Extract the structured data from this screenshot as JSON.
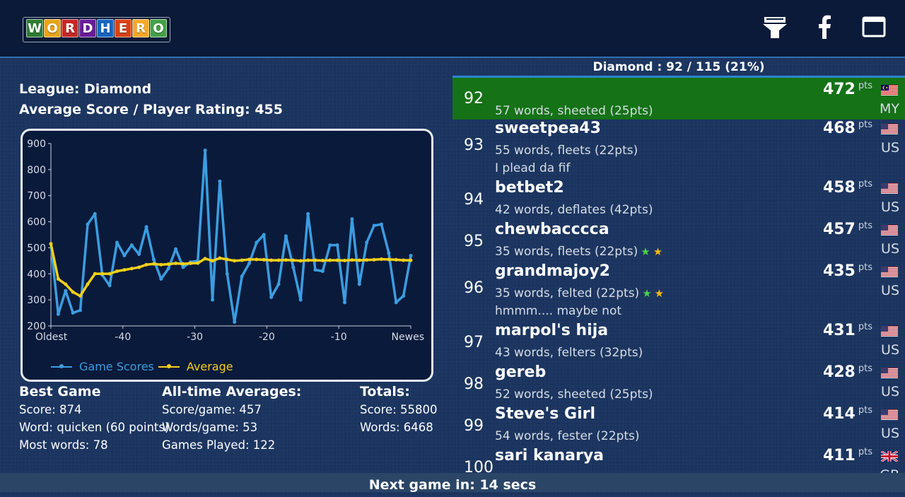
{
  "app": {
    "logo_letters": [
      "W",
      "O",
      "R",
      "D",
      "H",
      "E",
      "R",
      "O"
    ],
    "logo_colors": [
      "#2e7d32",
      "#e8a317",
      "#c62828",
      "#6a1b9a",
      "#1565c0",
      "#d84315",
      "#f9a825",
      "#43a047"
    ]
  },
  "topbar_icons": [
    "trophy-icon",
    "facebook-icon",
    "window-icon"
  ],
  "player": {
    "league_label": "League: Diamond",
    "rating_label": "Average Score / Player Rating: 455"
  },
  "chart_data": {
    "type": "line",
    "x_ticks": [
      "Oldest",
      "-40",
      "-30",
      "-20",
      "-10",
      "Newes"
    ],
    "ylim": [
      200,
      900
    ],
    "y_ticks": [
      "900",
      "800",
      "700",
      "600",
      "500",
      "400",
      "300",
      "200"
    ],
    "grid": false,
    "legend_position": "bottom-left",
    "series": [
      {
        "name": "Game Scores",
        "color": "#3b9de0",
        "values": [
          515,
          245,
          335,
          250,
          260,
          590,
          630,
          395,
          355,
          520,
          470,
          510,
          475,
          580,
          455,
          380,
          420,
          495,
          425,
          445,
          450,
          874,
          300,
          755,
          400,
          215,
          390,
          440,
          520,
          550,
          310,
          360,
          545,
          425,
          300,
          630,
          415,
          410,
          510,
          510,
          290,
          610,
          360,
          520,
          585,
          590,
          480,
          290,
          315,
          470
        ]
      },
      {
        "name": "Average",
        "color": "#f2d01a",
        "values": [
          515,
          380,
          360,
          330,
          315,
          360,
          400,
          400,
          400,
          410,
          415,
          420,
          425,
          435,
          438,
          435,
          437,
          440,
          438,
          440,
          441,
          458,
          450,
          460,
          455,
          450,
          452,
          455,
          455,
          454,
          452,
          452,
          453,
          452,
          450,
          452,
          452,
          451,
          452,
          452,
          451,
          453,
          452,
          453,
          454,
          456,
          455,
          454,
          452,
          452
        ]
      }
    ]
  },
  "stats": {
    "best": {
      "title": "Best Game",
      "score": "Score: 874",
      "word": "Word: quicken (60 points)",
      "most": "Most words: 78"
    },
    "averages": {
      "title": "All-time Averages:",
      "score": "Score/game: 457",
      "words": "Words/game: 53",
      "played": "Games Played: 122"
    },
    "totals": {
      "title": "Totals:",
      "score": "Score: 55800",
      "words": "Words: 6468"
    }
  },
  "leaderboard": {
    "title": "Diamond  :  92 / 115 (21%)",
    "pts_unit": "pts",
    "rows": [
      {
        "rank": "92",
        "name": "",
        "detail": "57 words, sheeted (25pts)",
        "msg": "",
        "pts": "472",
        "country": "MY",
        "flag": "my",
        "stars": 0,
        "highlight": true
      },
      {
        "rank": "93",
        "name": "sweetpea43",
        "detail": "55 words, fleets (22pts)",
        "msg": "I plead da fif",
        "pts": "468",
        "country": "US",
        "flag": "us",
        "stars": 0,
        "highlight": false
      },
      {
        "rank": "94",
        "name": "betbet2",
        "detail": "42 words, deflates (42pts)",
        "msg": "",
        "pts": "458",
        "country": "US",
        "flag": "us",
        "stars": 0,
        "highlight": false
      },
      {
        "rank": "95",
        "name": "chewbacccca",
        "detail": "35 words, fleets (22pts)",
        "msg": "",
        "pts": "457",
        "country": "US",
        "flag": "us",
        "stars": 2,
        "highlight": false
      },
      {
        "rank": "96",
        "name": "grandmajoy2",
        "detail": "35 words, felted (22pts)",
        "msg": "hmmm.... maybe not",
        "pts": "435",
        "country": "US",
        "flag": "us",
        "stars": 2,
        "highlight": false
      },
      {
        "rank": "97",
        "name": "marpol's  hija",
        "detail": "43 words, felters (32pts)",
        "msg": "",
        "pts": "431",
        "country": "US",
        "flag": "us",
        "stars": 0,
        "highlight": false
      },
      {
        "rank": "98",
        "name": "gereb",
        "detail": "52 words, sheeted (25pts)",
        "msg": "",
        "pts": "428",
        "country": "US",
        "flag": "us",
        "stars": 0,
        "highlight": false
      },
      {
        "rank": "99",
        "name": "Steve's Girl",
        "detail": "54 words, fester (22pts)",
        "msg": "",
        "pts": "414",
        "country": "US",
        "flag": "us",
        "stars": 0,
        "highlight": false
      },
      {
        "rank": "100",
        "name": "sari kanarya",
        "detail": "",
        "msg": "",
        "pts": "411",
        "country": "GB",
        "flag": "gb",
        "stars": 0,
        "highlight": false
      }
    ]
  },
  "footer": {
    "next_game": "Next game in: 14 secs"
  }
}
